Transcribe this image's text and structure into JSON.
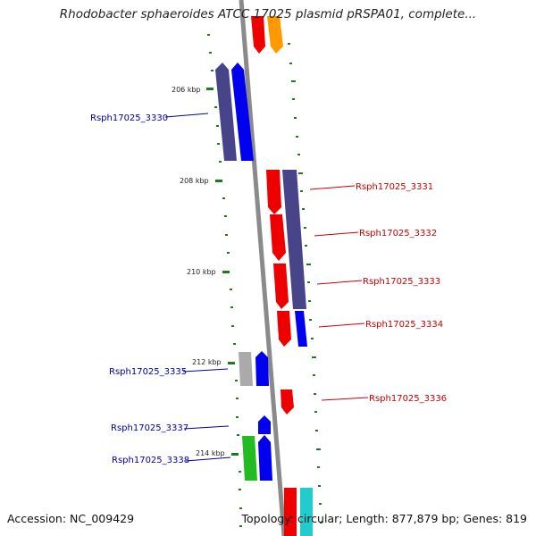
{
  "title": "Rhodobacter sphaeroides ATCC 17025 plasmid pRSPA01, complete...",
  "footer": {
    "accession": "Accession: NC_009429",
    "topology": "Topology: circular; Length: 877,879 bp; Genes: 819"
  },
  "ticks": [
    "206 kbp",
    "208 kbp",
    "210 kbp",
    "212 kbp",
    "214 kbp"
  ],
  "gene_labels": [
    {
      "text": "Rsph17025_3330",
      "color": "#0000aa"
    },
    {
      "text": "Rsph17025_3331",
      "color": "#cc0000"
    },
    {
      "text": "Rsph17025_3332",
      "color": "#cc0000"
    },
    {
      "text": "Rsph17025_3333",
      "color": "#cc0000"
    },
    {
      "text": "Rsph17025_3334",
      "color": "#cc0000"
    },
    {
      "text": "Rsph17025_3335",
      "color": "#0000aa"
    },
    {
      "text": "Rsph17025_3336",
      "color": "#cc0000"
    },
    {
      "text": "Rsph17025_3337",
      "color": "#0000aa"
    },
    {
      "text": "Rsph17025_3338",
      "color": "#0000aa"
    }
  ],
  "colors": {
    "backbone": "#8a8a8a",
    "tick": "#1f7a1f",
    "red": "#ee0000",
    "blue": "#0000ee",
    "navy": "#48448a",
    "orange": "#ff9900",
    "green": "#22bb22",
    "grey": "#aaaaaa",
    "cyan": "#22cccc"
  }
}
